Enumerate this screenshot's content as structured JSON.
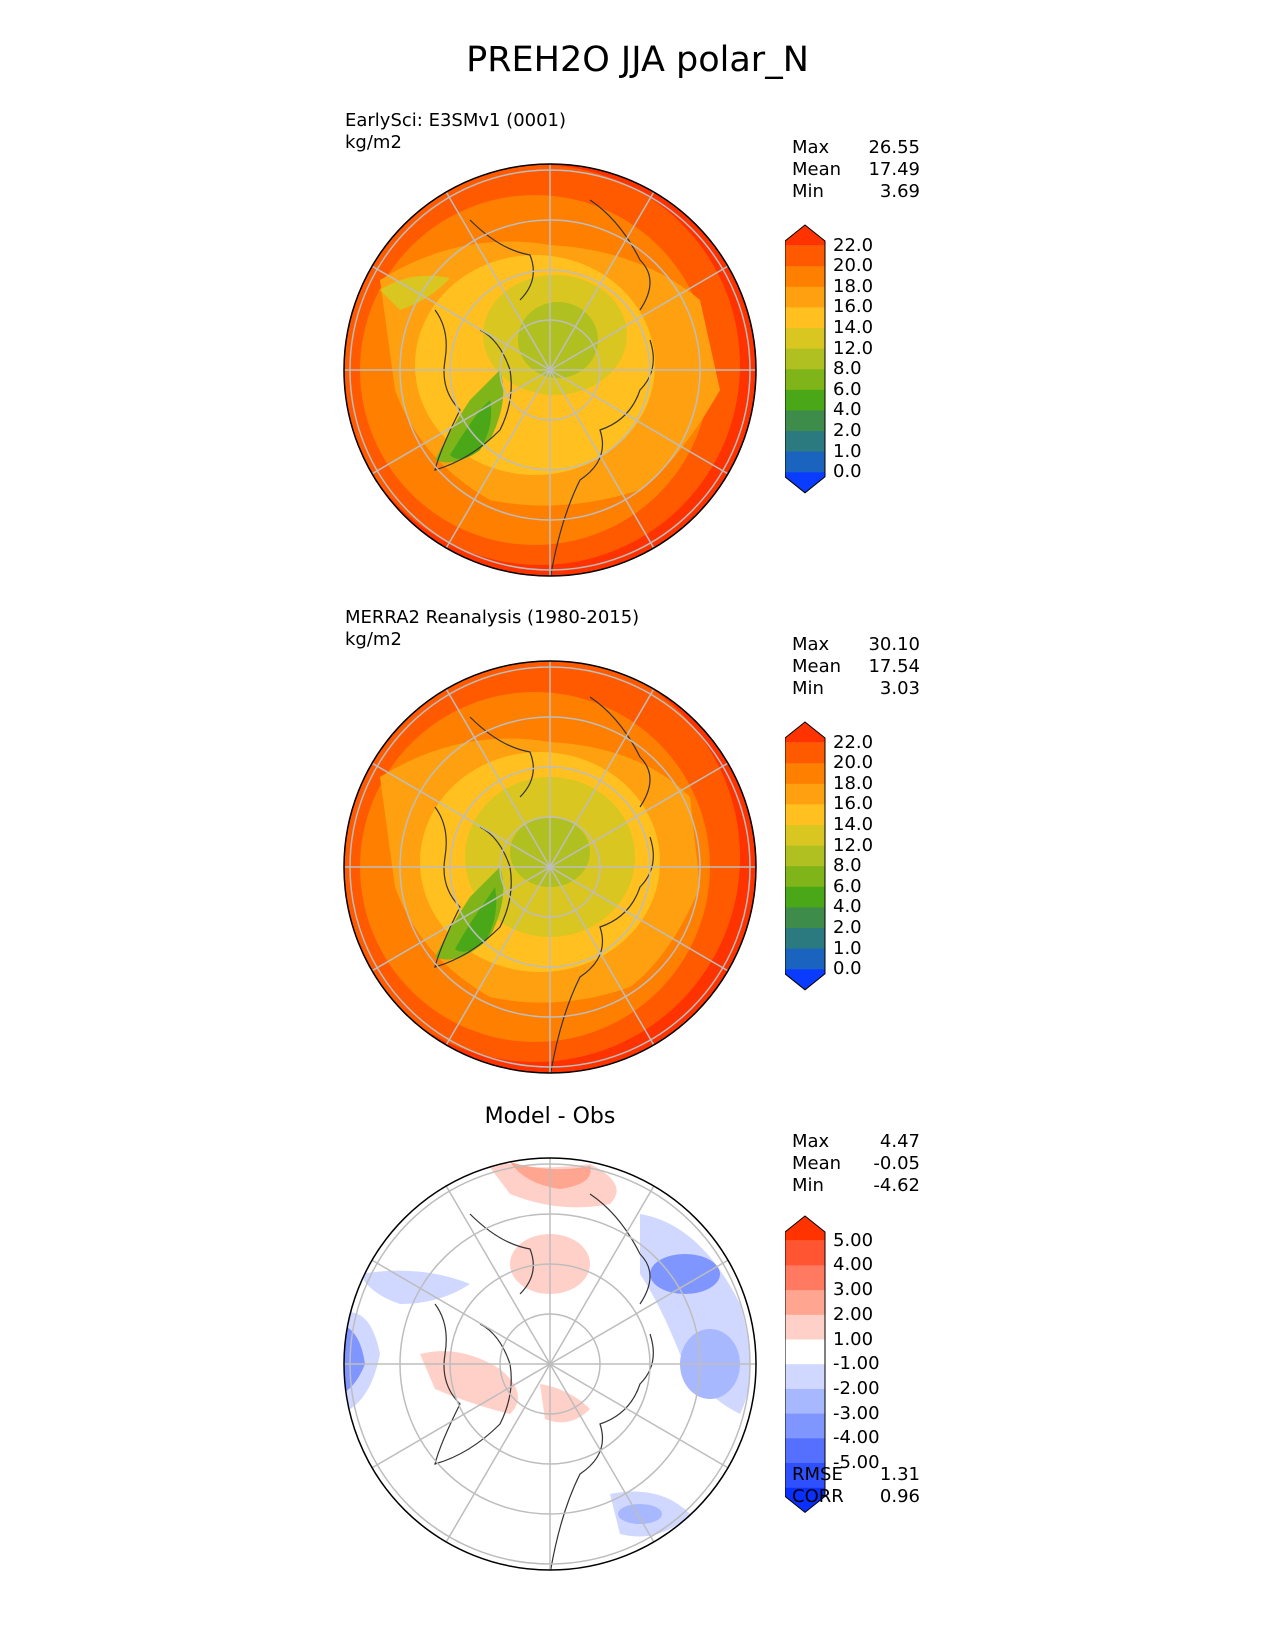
{
  "page_title": "PREH2O JJA polar_N",
  "chart_data": [
    {
      "type": "heatmap",
      "name": "test",
      "title_lines": [
        "EarlySci: E3SMv1 (0001)",
        "kg/m2"
      ],
      "stats": [
        {
          "label": "Max",
          "value": "26.55"
        },
        {
          "label": "Mean",
          "value": "17.49"
        },
        {
          "label": "Min",
          "value": "3.69"
        }
      ],
      "colorbar": {
        "levels": [
          "22.0",
          "20.0",
          "18.0",
          "16.0",
          "14.0",
          "12.0",
          "8.0",
          "6.0",
          "4.0",
          "2.0",
          "1.0",
          "0.0"
        ],
        "colors": [
          "#ff3300",
          "#ff5a00",
          "#ff7f00",
          "#ffa010",
          "#ffc020",
          "#d9c620",
          "#b0c020",
          "#7fb518",
          "#4aa818",
          "#3d8c4a",
          "#2a7a80",
          "#1a64c0",
          "#0a3cff"
        ]
      }
    },
    {
      "type": "heatmap",
      "name": "reference",
      "title_lines": [
        "MERRA2 Reanalysis (1980-2015)",
        "kg/m2"
      ],
      "stats": [
        {
          "label": "Max",
          "value": "30.10"
        },
        {
          "label": "Mean",
          "value": "17.54"
        },
        {
          "label": "Min",
          "value": "3.03"
        }
      ],
      "colorbar": {
        "levels": [
          "22.0",
          "20.0",
          "18.0",
          "16.0",
          "14.0",
          "12.0",
          "8.0",
          "6.0",
          "4.0",
          "2.0",
          "1.0",
          "0.0"
        ],
        "colors": [
          "#ff3300",
          "#ff5a00",
          "#ff7f00",
          "#ffa010",
          "#ffc020",
          "#d9c620",
          "#b0c020",
          "#7fb518",
          "#4aa818",
          "#3d8c4a",
          "#2a7a80",
          "#1a64c0",
          "#0a3cff"
        ]
      }
    },
    {
      "type": "heatmap",
      "name": "difference",
      "title": "Model - Obs",
      "stats": [
        {
          "label": "Max",
          "value": "4.47"
        },
        {
          "label": "Mean",
          "value": "-0.05"
        },
        {
          "label": "Min",
          "value": "-4.62"
        }
      ],
      "metrics": [
        {
          "label": "RMSE",
          "value": "1.31"
        },
        {
          "label": "CORR",
          "value": "0.96"
        }
      ],
      "colorbar": {
        "levels": [
          "5.00",
          "4.00",
          "3.00",
          "2.00",
          "1.00",
          "-1.00",
          "-2.00",
          "-3.00",
          "-4.00",
          "-5.00"
        ],
        "colors": [
          "#ff3300",
          "#ff5533",
          "#ff7a60",
          "#ffa590",
          "#ffd0c8",
          "#ffffff",
          "#d0d8ff",
          "#a8b8ff",
          "#7f95ff",
          "#5570ff",
          "#2f50ff",
          "#0a30ff"
        ]
      }
    }
  ]
}
